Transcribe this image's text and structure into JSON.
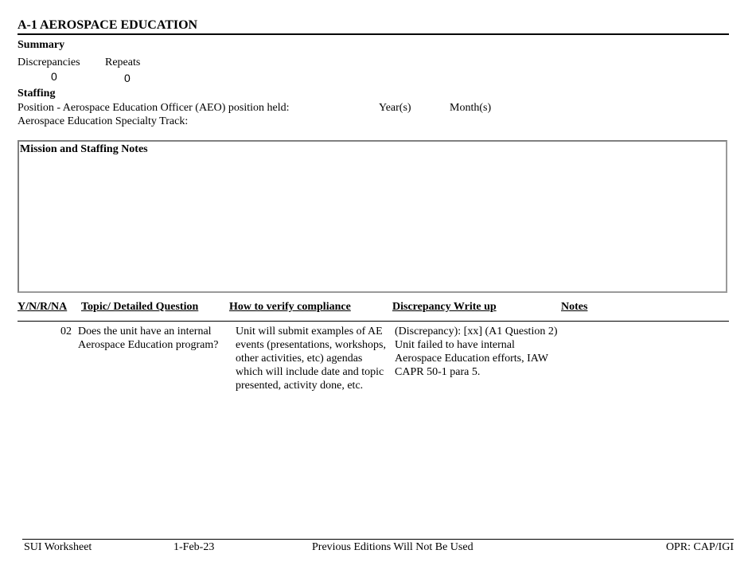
{
  "title": "A-1 AEROSPACE EDUCATION",
  "summary": {
    "heading": "Summary",
    "discrepancies_label": "Discrepancies",
    "discrepancies_value": "0",
    "repeats_label": "Repeats",
    "repeats_value": "0"
  },
  "staffing": {
    "heading": "Staffing",
    "position_label": "Position - Aerospace Education Officer (AEO) position held:",
    "years_label": "Year(s)",
    "months_label": "Month(s)",
    "specialty_label": "Aerospace Education Specialty Track:"
  },
  "notes_box": {
    "heading": "Mission and Staffing Notes"
  },
  "table": {
    "headers": [
      "Y/N/R/NA",
      "Topic/ Detailed Question",
      "How to verify compliance",
      "Discrepancy Write up",
      "Notes"
    ],
    "rows": [
      {
        "number": "02",
        "question": "Does the unit have an internal Aerospace Education program?",
        "verify": "Unit will submit examples of AE events (presentations, workshops, other activities, etc) agendas which will include date and topic presented, activity done, etc.",
        "discrepancy": "(Discrepancy): [xx] (A1 Question 2) Unit failed to have internal Aerospace Education efforts, IAW CAPR 50-1 para 5.",
        "notes": ""
      }
    ]
  },
  "footer": {
    "form": "SUI Worksheet",
    "date": "1-Feb-23",
    "notice": "Previous Editions Will Not Be Used",
    "opr": "OPR: CAP/IGI"
  }
}
